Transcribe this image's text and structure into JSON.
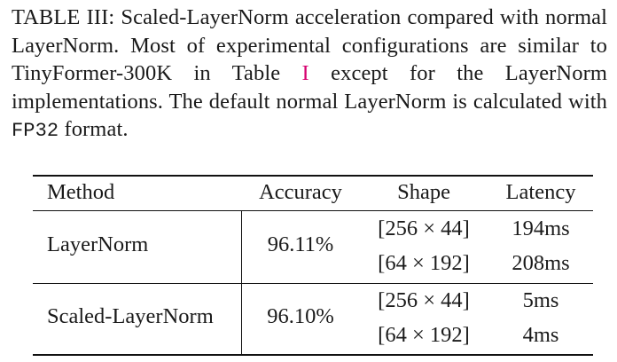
{
  "caption": {
    "label": "TABLE III:",
    "text_before_ref": "Scaled-LayerNorm acceleration compared with normal LayerNorm. Most of experimental configurations are similar to TinyFormer-300K in Table ",
    "ref": "I",
    "text_after_ref": " except for the LayerNorm implementations. The default normal LayerNorm is calculated with ",
    "format": "FP32",
    "text_end": " format."
  },
  "table": {
    "headers": [
      "Method",
      "Accuracy",
      "Shape",
      "Latency"
    ],
    "rows": [
      {
        "method": "LayerNorm",
        "accuracy": "96.11%",
        "entries": [
          {
            "shape": "[256 × 44]",
            "latency": "194ms"
          },
          {
            "shape": "[64 × 192]",
            "latency": "208ms"
          }
        ]
      },
      {
        "method": "Scaled-LayerNorm",
        "accuracy": "96.10%",
        "entries": [
          {
            "shape": "[256 × 44]",
            "latency": "5ms"
          },
          {
            "shape": "[64 × 192]",
            "latency": "4ms"
          }
        ]
      }
    ]
  }
}
